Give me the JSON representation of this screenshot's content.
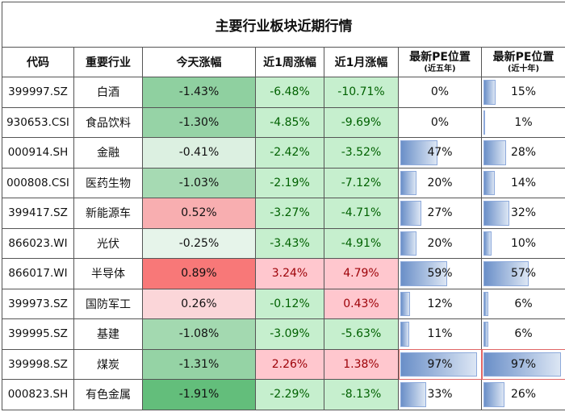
{
  "title": "主要行业板块近期行情",
  "headers": {
    "code": "代码",
    "industry": "重要行业",
    "today": "今天涨幅",
    "week": "近1周涨幅",
    "month": "近1月涨幅",
    "pe5_main": "最新PE位置",
    "pe5_sub": "(近五年)",
    "pe10_main": "最新PE位置",
    "pe10_sub": "(近十年)"
  },
  "rows": [
    {
      "code": "399997.SZ",
      "industry": "白酒",
      "today": "-1.43%",
      "today_bg": "#8fd0a0",
      "week": "-6.48%",
      "month": "-10.71%",
      "pe5": "0%",
      "pe5_v": 0,
      "pe10": "15%",
      "pe10_v": 15
    },
    {
      "code": "930653.CSI",
      "industry": "食品饮料",
      "today": "-1.30%",
      "today_bg": "#96d3a6",
      "week": "-4.85%",
      "month": "-9.69%",
      "pe5": "0%",
      "pe5_v": 0,
      "pe10": "1%",
      "pe10_v": 1
    },
    {
      "code": "000914.SH",
      "industry": "金融",
      "today": "-0.41%",
      "today_bg": "#dcf0e1",
      "week": "-2.42%",
      "month": "-3.52%",
      "pe5": "47%",
      "pe5_v": 47,
      "pe10": "28%",
      "pe10_v": 28
    },
    {
      "code": "000808.CSI",
      "industry": "医药生物",
      "today": "-1.03%",
      "today_bg": "#a6dab3",
      "week": "-2.19%",
      "month": "-7.12%",
      "pe5": "20%",
      "pe5_v": 20,
      "pe10": "14%",
      "pe10_v": 14
    },
    {
      "code": "399417.SZ",
      "industry": "新能源车",
      "today": "0.52%",
      "today_bg": "#f8aeb0",
      "week": "-3.27%",
      "month": "-4.71%",
      "pe5": "27%",
      "pe5_v": 27,
      "pe10": "32%",
      "pe10_v": 32
    },
    {
      "code": "866023.WI",
      "industry": "光伏",
      "today": "-0.25%",
      "today_bg": "#e6f4ea",
      "week": "-3.43%",
      "month": "-4.91%",
      "pe5": "20%",
      "pe5_v": 20,
      "pe10": "10%",
      "pe10_v": 10
    },
    {
      "code": "866017.WI",
      "industry": "半导体",
      "today": "0.89%",
      "today_bg": "#f87878",
      "week": "3.24%",
      "month": "4.79%",
      "pe5": "59%",
      "pe5_v": 59,
      "pe10": "57%",
      "pe10_v": 57
    },
    {
      "code": "399973.SZ",
      "industry": "国防军工",
      "today": "0.26%",
      "today_bg": "#fbd6d9",
      "week": "-0.12%",
      "month": "0.43%",
      "pe5": "12%",
      "pe5_v": 12,
      "pe10": "6%",
      "pe10_v": 6
    },
    {
      "code": "399995.SZ",
      "industry": "基建",
      "today": "-1.08%",
      "today_bg": "#a3d9b0",
      "week": "-3.09%",
      "month": "-5.63%",
      "pe5": "11%",
      "pe5_v": 11,
      "pe10": "6%",
      "pe10_v": 6
    },
    {
      "code": "399998.SZ",
      "industry": "煤炭",
      "today": "-1.31%",
      "today_bg": "#95d3a5",
      "week": "2.26%",
      "month": "1.38%",
      "pe5": "97%",
      "pe5_v": 97,
      "pe10": "97%",
      "pe10_v": 97
    },
    {
      "code": "000823.SH",
      "industry": "有色金属",
      "today": "-1.91%",
      "today_bg": "#63be7b",
      "week": "-2.29%",
      "month": "-8.13%",
      "pe5": "33%",
      "pe5_v": 33,
      "pe10": "26%",
      "pe10_v": 26
    }
  ],
  "colors": {
    "positive_text": "#9c0006",
    "negative_text": "#006100",
    "positive_bg": "#ffc7ce",
    "negative_bg": "#c6efce",
    "databar": "#6a8fc8"
  }
}
